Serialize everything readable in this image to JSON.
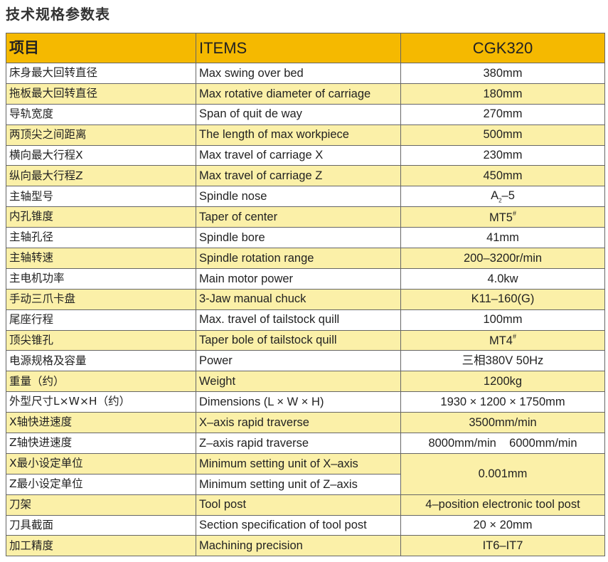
{
  "title": "技术规格参数表",
  "colors": {
    "header": "#F5B900",
    "stripe": "#FBF0A8",
    "plain": "#FFFFFF"
  },
  "header": {
    "zh": "项目",
    "en": "ITEMS",
    "model": "CGK320"
  },
  "rows": [
    {
      "zh": "床身最大回转直径",
      "en": "Max swing over bed",
      "value": "380mm"
    },
    {
      "zh": "拖板最大回转直径",
      "en": "Max rotative diameter of carriage",
      "value": "180mm"
    },
    {
      "zh": "导轨宽度",
      "en": "Span of quit de way",
      "value": "270mm"
    },
    {
      "zh": "两顶尖之间距离",
      "en": "The length of max workpiece",
      "value": "500mm"
    },
    {
      "zh": "横向最大行程X",
      "en": "Max travel of carriage X",
      "value": "230mm"
    },
    {
      "zh": "纵向最大行程Z",
      "en": "Max travel of carriage Z",
      "value": "450mm"
    },
    {
      "zh": "主轴型号",
      "en": "Spindle nose",
      "value": "A",
      "value_sub": "2",
      "value_tail": "–5"
    },
    {
      "zh": "内孔锥度",
      "en": "Taper of center",
      "value": "MT5",
      "value_sup": "#"
    },
    {
      "zh": "主轴孔径",
      "en": "Spindle bore",
      "value": "41mm"
    },
    {
      "zh": "主轴转速",
      "en": "Spindle rotation range",
      "value": "200–3200r/min"
    },
    {
      "zh": "主电机功率",
      "en": "Main motor power",
      "value": "4.0kw"
    },
    {
      "zh": "手动三爪卡盘",
      "en": "3-Jaw manual chuck",
      "value": "K11–160(G)"
    },
    {
      "zh": "尾座行程",
      "en": "Max. travel of tailstock quill",
      "value": "100mm"
    },
    {
      "zh": "顶尖锥孔",
      "en": "Taper bole of tailstock quill",
      "value": "MT4",
      "value_sup": "#"
    },
    {
      "zh": "电源规格及容量",
      "en": "Power",
      "value": "三相380V 50Hz"
    },
    {
      "zh": "重量（约）",
      "en": "Weight",
      "value": "1200kg"
    },
    {
      "zh": "外型尺寸L×W×H（约）",
      "en": "Dimensions (L × W × H)",
      "value": "1930 × 1200 × 1750mm"
    },
    {
      "zh": "X轴快进速度",
      "en": "X–axis rapid traverse",
      "value": "3500mm/min"
    },
    {
      "zh": "Z轴快进速度",
      "en": "Z–axis rapid traverse",
      "value": "8000mm/min    6000mm/min"
    },
    {
      "zh": "X最小设定单位",
      "en": "Minimum setting unit of X–axis",
      "value": "0.001mm"
    },
    {
      "zh": "Z最小设定单位",
      "en": "Minimum setting unit of Z–axis"
    },
    {
      "zh": "刀架",
      "en": "Tool post",
      "value": "4–position electronic tool post"
    },
    {
      "zh": "刀具截面",
      "en": "Section specification of tool post",
      "value": "20 × 20mm"
    },
    {
      "zh": "加工精度",
      "en": "Machining precision",
      "value": "IT6–IT7"
    }
  ]
}
